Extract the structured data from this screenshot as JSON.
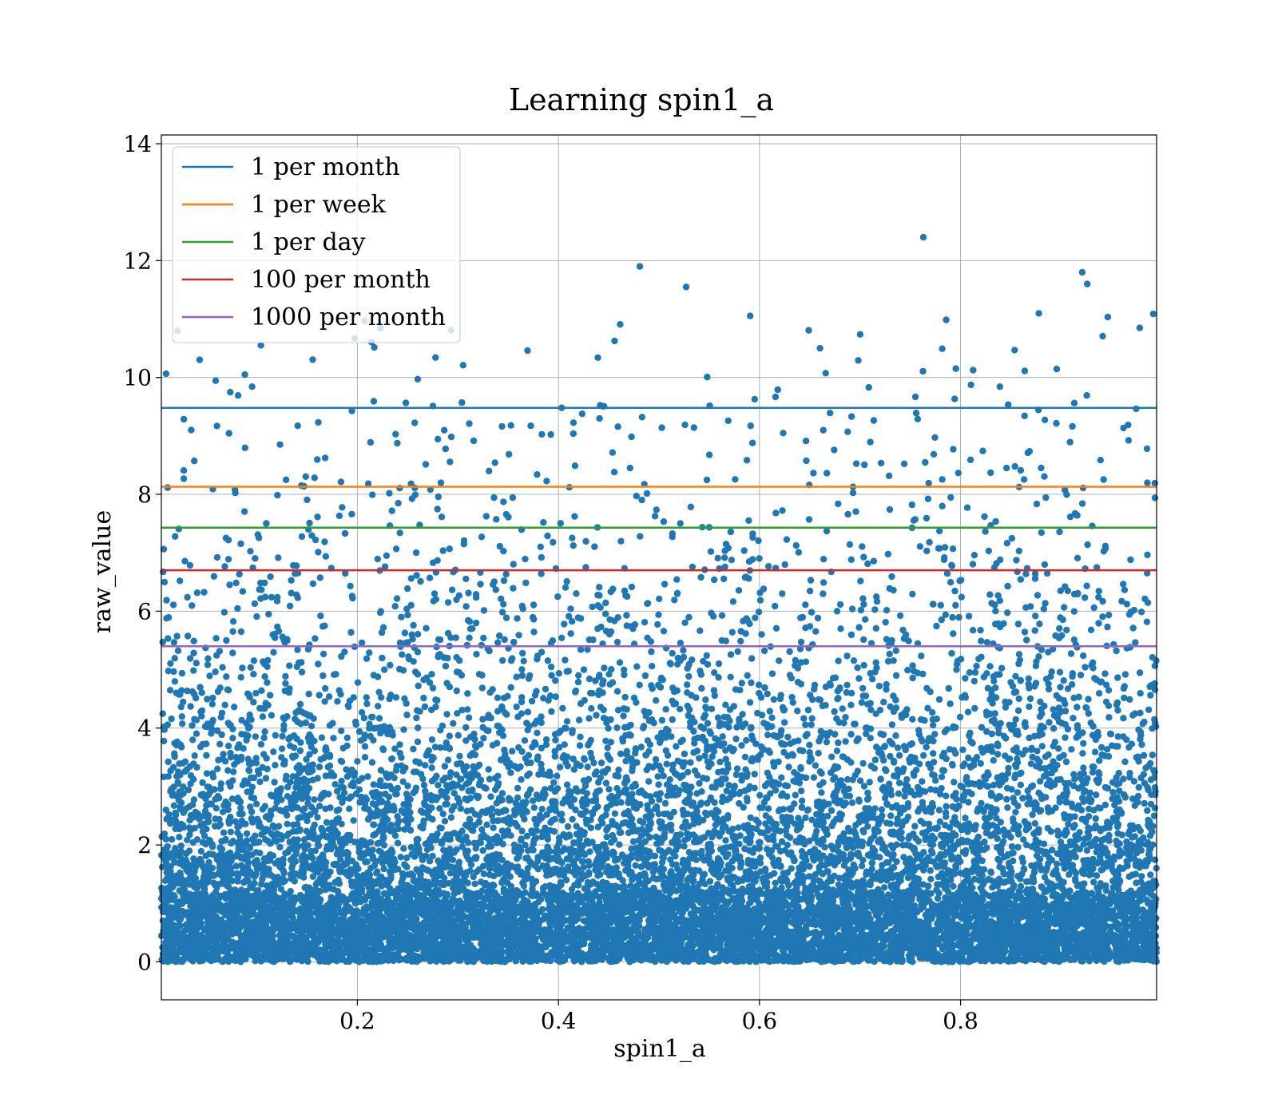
{
  "chart_data": {
    "type": "scatter",
    "title": "Learning spin1_a",
    "xlabel": "spin1_a",
    "ylabel": "raw_value",
    "xlim": [
      0.005,
      0.995
    ],
    "ylim": [
      -0.65,
      14.15
    ],
    "xticks": [
      0.2,
      0.4,
      0.6,
      0.8
    ],
    "yticks": [
      0,
      2,
      4,
      6,
      8,
      10,
      12,
      14
    ],
    "grid": true,
    "legend": {
      "placement": "top-left"
    },
    "scatter_series": {
      "color": "#1f77b4",
      "approx_point_count": 20000,
      "distribution": "roughly uniform in x over [0.005, 0.995]; y concentrated near 0 and decaying upward (dense band below 2, sparse up to about 11)",
      "y_range": [
        0,
        12.4
      ],
      "notable_points": [
        {
          "x": 0.763,
          "y": 12.4
        },
        {
          "x": 0.481,
          "y": 11.9
        },
        {
          "x": 0.921,
          "y": 11.8
        },
        {
          "x": 0.926,
          "y": 11.6
        },
        {
          "x": 0.527,
          "y": 11.55
        }
      ]
    },
    "series": [
      {
        "name": "1 per month",
        "type": "hline",
        "y": 9.48,
        "color": "#1f77b4"
      },
      {
        "name": "1 per week",
        "type": "hline",
        "y": 8.13,
        "color": "#ff7f0e"
      },
      {
        "name": "1 per day",
        "type": "hline",
        "y": 7.43,
        "color": "#2ca02c"
      },
      {
        "name": "100 per month",
        "type": "hline",
        "y": 6.7,
        "color": "#d62728"
      },
      {
        "name": "1000 per month",
        "type": "hline",
        "y": 5.4,
        "color": "#9467bd"
      }
    ]
  }
}
